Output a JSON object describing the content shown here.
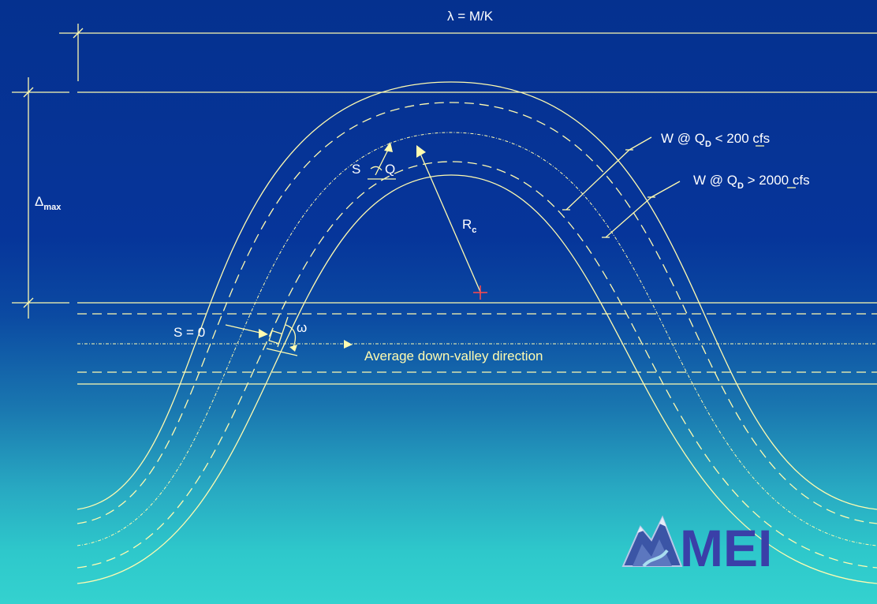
{
  "labels": {
    "wavelength": "λ = M/K",
    "amplitude_symbol": "Δ",
    "amplitude_sub": "max",
    "width_low_main": "W @ Q",
    "width_low_sub": "D",
    "width_low_rest": " < 200 cfs",
    "width_high_main": "W @ Q",
    "width_high_sub": "D",
    "width_high_rest": " > 2000 cfs",
    "sq_s": "S",
    "sq_q": "Q",
    "radius_main": "R",
    "radius_sub": "c",
    "s_zero": "S = 0",
    "omega": "ω",
    "direction": "Average down-valley direction"
  },
  "logo": {
    "text": "MEI",
    "icon": "mountain-river-logo-icon",
    "color": "#3a3fa8"
  },
  "colors": {
    "line": "#fffbb0",
    "center_mark": "#ff4a4a",
    "background_top": "#05318f",
    "background_bottom": "#34d2cf"
  }
}
